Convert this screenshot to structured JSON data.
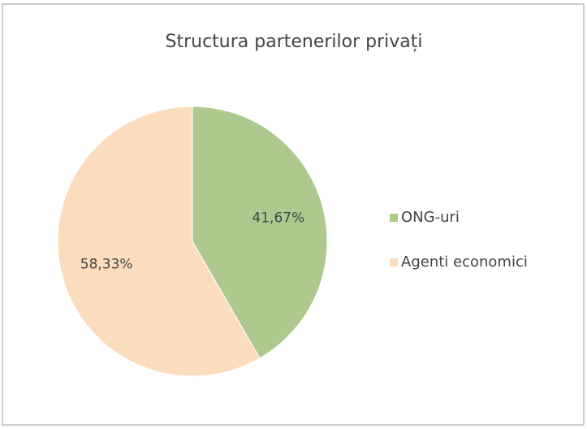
{
  "chart_data": {
    "type": "pie",
    "title": "Structura partenerilor privați",
    "categories": [
      "ONG-uri",
      "Agenti economici"
    ],
    "values": [
      41.67,
      58.33
    ],
    "value_labels": [
      "41,67%",
      "58,33%"
    ],
    "colors": [
      "#adc98e",
      "#fbdcbd"
    ],
    "legend": "right"
  }
}
